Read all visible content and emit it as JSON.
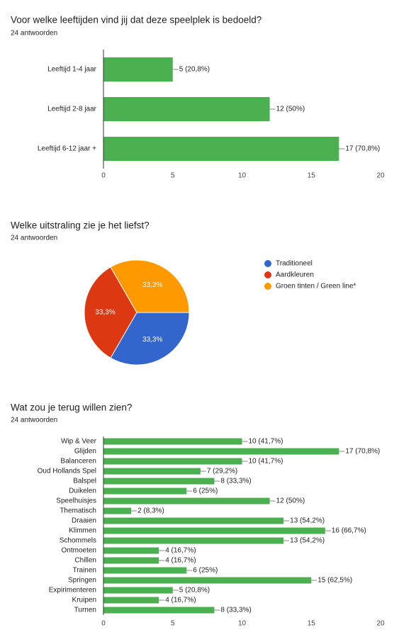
{
  "chart_data": [
    {
      "type": "bar",
      "orientation": "horizontal",
      "title": "Voor welke leeftijden vind jij dat deze speelplek is bedoeld?",
      "subtitle": "24 antwoorden",
      "categories": [
        "Leeftijd 1-4 jaar",
        "Leeftijd 2-8 jaar",
        "Leeftijd 6-12 jaar +"
      ],
      "values": [
        5,
        12,
        17
      ],
      "value_labels": [
        "5 (20,8%)",
        "12 (50%)",
        "17 (70,8%)"
      ],
      "color": "#4caf50",
      "xlim": [
        0,
        20
      ],
      "xticks": [
        0,
        5,
        10,
        15,
        20
      ]
    },
    {
      "type": "pie",
      "title": "Welke uitstraling zie je het liefst?",
      "subtitle": "24 antwoorden",
      "categories": [
        "Traditioneel",
        "Aardkleuren",
        "Groen tinten / Green line*"
      ],
      "values": [
        33.3,
        33.3,
        33.3
      ],
      "value_labels": [
        "33,3%",
        "33,3%",
        "33,3%"
      ],
      "colors": [
        "#3366cc",
        "#dc3912",
        "#ff9900"
      ]
    },
    {
      "type": "bar",
      "orientation": "horizontal",
      "title": "Wat zou je terug willen zien?",
      "subtitle": "24 antwoorden",
      "categories": [
        "Wip & Veer",
        "Glijden",
        "Balanceren",
        "Oud Hollands Spel",
        "Balspel",
        "Duikelen",
        "Speelhuisjes",
        "Thematisch",
        "Draaien",
        "Klimmen",
        "Schommels",
        "Ontmoeten",
        "Chillen",
        "Trainen",
        "Springen",
        "Expirimenteren",
        "Kruipen",
        "Turnen"
      ],
      "values": [
        10,
        17,
        10,
        7,
        8,
        6,
        12,
        2,
        13,
        16,
        13,
        4,
        4,
        6,
        15,
        5,
        4,
        8
      ],
      "value_labels": [
        "10 (41,7%)",
        "17 (70,8%)",
        "10 (41,7%)",
        "7 (29,2%)",
        "8 (33,3%)",
        "6 (25%)",
        "12 (50%)",
        "2 (8,3%)",
        "13 (54,2%)",
        "16 (66,7%)",
        "13 (54,2%)",
        "4 (16,7%)",
        "4 (16,7%)",
        "6 (25%)",
        "15 (62,5%)",
        "5 (20,8%)",
        "4 (16,7%)",
        "8 (33,3%)"
      ],
      "color": "#4caf50",
      "xlim": [
        0,
        20
      ],
      "xticks": [
        0,
        5,
        10,
        15,
        20
      ]
    }
  ]
}
